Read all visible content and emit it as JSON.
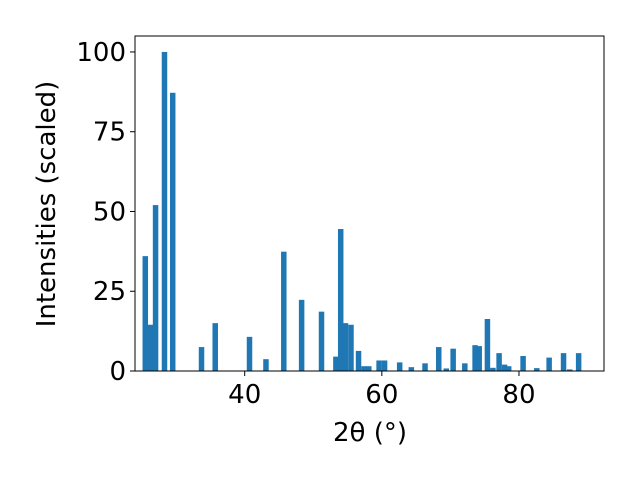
{
  "chart_data": {
    "type": "bar",
    "title": "",
    "xlabel": "2θ (°)",
    "ylabel": "Intensities (scaled)",
    "xlim": [
      24.0,
      92.4
    ],
    "ylim": [
      0,
      105
    ],
    "xticks": [
      40,
      60,
      80
    ],
    "yticks": [
      0,
      25,
      50,
      75,
      100
    ],
    "xtick_labels": [
      "40",
      "60",
      "80"
    ],
    "ytick_labels": [
      "0",
      "25",
      "50",
      "75",
      "100"
    ],
    "grid": false,
    "legend": "none",
    "bar_color": "#1f77b4",
    "bar_width": 0.8,
    "x": [
      25.5,
      26.3,
      27.0,
      28.3,
      29.5,
      33.7,
      35.7,
      40.7,
      43.1,
      45.7,
      48.3,
      51.2,
      53.3,
      54.0,
      54.7,
      55.5,
      56.6,
      57.4,
      58.1,
      59.6,
      60.4,
      62.6,
      64.3,
      66.3,
      68.3,
      69.4,
      70.4,
      72.1,
      73.6,
      74.2,
      75.4,
      76.2,
      77.1,
      77.9,
      78.5,
      80.6,
      82.6,
      84.4,
      86.5,
      87.4,
      88.7
    ],
    "values": [
      36,
      14.5,
      52,
      100,
      87.2,
      7.5,
      15,
      10.7,
      3.7,
      37.4,
      22.3,
      18.6,
      4.5,
      44.5,
      15,
      14.5,
      6.3,
      1.5,
      1.5,
      3.3,
      3.3,
      2.7,
      1.2,
      2.4,
      7.5,
      0.8,
      7.0,
      2.4,
      8.1,
      7.8,
      16.3,
      1.0,
      5.6,
      2.0,
      1.5,
      4.7,
      0.9,
      4.2,
      5.6,
      0.5,
      5.6
    ]
  }
}
